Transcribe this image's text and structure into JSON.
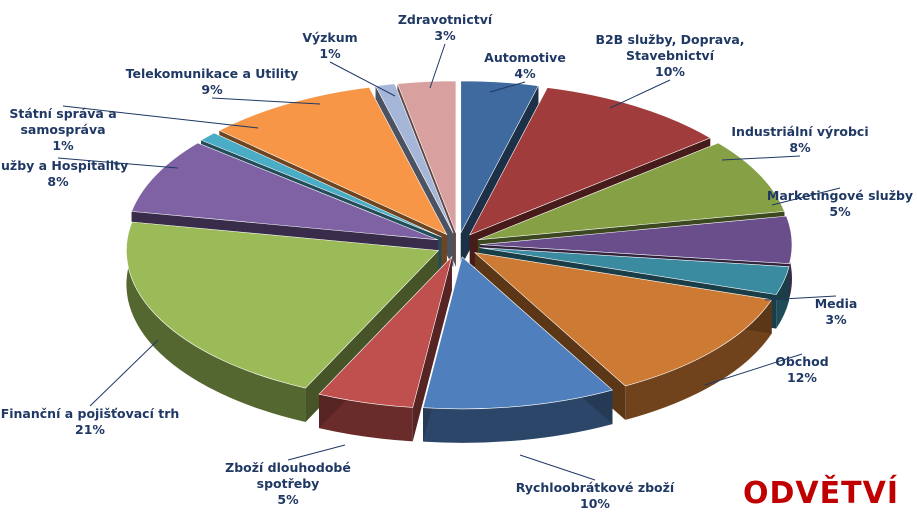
{
  "chart_data": {
    "type": "pie",
    "style": "3d-exploded",
    "title": "ODVĚTVÍ",
    "title_color": "#c00000",
    "label_color": "#1f3864",
    "slices": [
      {
        "label": "Automotive",
        "lines": [
          "Automotive"
        ],
        "pct": "4%",
        "value": 4,
        "color": "#3f6aa0"
      },
      {
        "label": "B2B služby, Doprava, Stavebnictví",
        "lines": [
          "B2B  služby,  Doprava,",
          "Stavebnictví"
        ],
        "pct": "10%",
        "value": 10,
        "color": "#a13c3c"
      },
      {
        "label": "Industriální výrobci",
        "lines": [
          "Industriální  výrobci"
        ],
        "pct": "8%",
        "value": 8,
        "color": "#86a046"
      },
      {
        "label": "Marketingové služby",
        "lines": [
          "Marketingové  služby"
        ],
        "pct": "5%",
        "value": 5,
        "color": "#6a4e8c"
      },
      {
        "label": "Media",
        "lines": [
          "Media"
        ],
        "pct": "3%",
        "value": 3,
        "color": "#3a8aa0"
      },
      {
        "label": "Obchod",
        "lines": [
          "Obchod"
        ],
        "pct": "12%",
        "value": 12,
        "color": "#cc7a34"
      },
      {
        "label": "Rychloobrátkové zboží",
        "lines": [
          "Rychloobrátkové  zboží"
        ],
        "pct": "10%",
        "value": 10,
        "color": "#4f80bd"
      },
      {
        "label": "Zboží dlouhodobé spotřeby",
        "lines": [
          "Zboží  dlouhodobé",
          "spotřeby"
        ],
        "pct": "5%",
        "value": 5,
        "color": "#c0504d"
      },
      {
        "label": "Finanční a pojišťovací trh",
        "lines": [
          "Finanční   a pojišťovací  trh"
        ],
        "pct": "21%",
        "value": 21,
        "color": "#9bbb59"
      },
      {
        "label": "Služby a Hospitality",
        "lines": [
          "Služby  a Hospitality"
        ],
        "pct": "8%",
        "value": 8,
        "color": "#7f62a4"
      },
      {
        "label": "Státní správa a samospráva",
        "lines": [
          "Státní  správa  a",
          "samospráva"
        ],
        "pct": "1%",
        "value": 1,
        "color": "#4bacc6"
      },
      {
        "label": "Telekomunikace a Utility",
        "lines": [
          "Telekomunikace   a Utility"
        ],
        "pct": "9%",
        "value": 9,
        "color": "#f79646"
      },
      {
        "label": "Výzkum",
        "lines": [
          "Výzkum"
        ],
        "pct": "1%",
        "value": 1,
        "color": "#a6b6d8"
      },
      {
        "label": "Zdravotnictví",
        "lines": [
          "Zdravotnictví"
        ],
        "pct": "3%",
        "value": 3,
        "color": "#d9a0a0"
      }
    ]
  }
}
